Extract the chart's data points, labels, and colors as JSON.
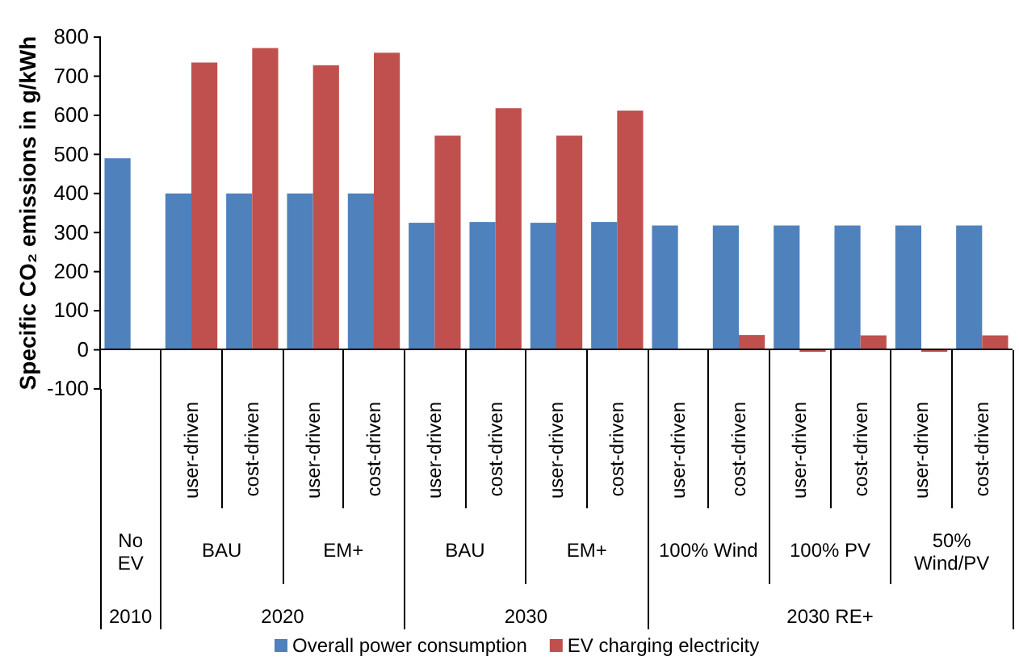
{
  "chart_data": {
    "type": "bar",
    "ylabel": "Specific CO₂ emissions in g/kWh",
    "categories": [
      null,
      "user-driven",
      "cost-driven",
      "user-driven",
      "cost-driven",
      "user-driven",
      "cost-driven",
      "user-driven",
      "cost-driven",
      "user-driven",
      "cost-driven",
      "user-driven",
      "cost-driven",
      "user-driven",
      "cost-driven"
    ],
    "series": [
      {
        "name": "Overall power consumption",
        "color": "#4f81bd",
        "values": [
          490,
          400,
          400,
          400,
          400,
          325,
          327,
          325,
          327,
          318,
          318,
          318,
          318,
          318,
          318
        ]
      },
      {
        "name": "EV charging electricity",
        "color": "#c0504d",
        "values": [
          null,
          735,
          772,
          728,
          760,
          548,
          618,
          548,
          612,
          null,
          38,
          -5,
          37,
          -5,
          37
        ]
      }
    ],
    "ylim": [
      -100,
      800
    ],
    "yticks": [
      -100,
      0,
      100,
      200,
      300,
      400,
      500,
      600,
      700,
      800
    ],
    "grid": false,
    "legend": "bottom",
    "annotations": [
      "No EV",
      "BAU",
      "EM+",
      "BAU",
      "EM+",
      "100% Wind",
      "100% PV",
      "50% Wind/PV",
      "2010",
      "2020",
      "2030",
      "2030 RE+"
    ]
  }
}
